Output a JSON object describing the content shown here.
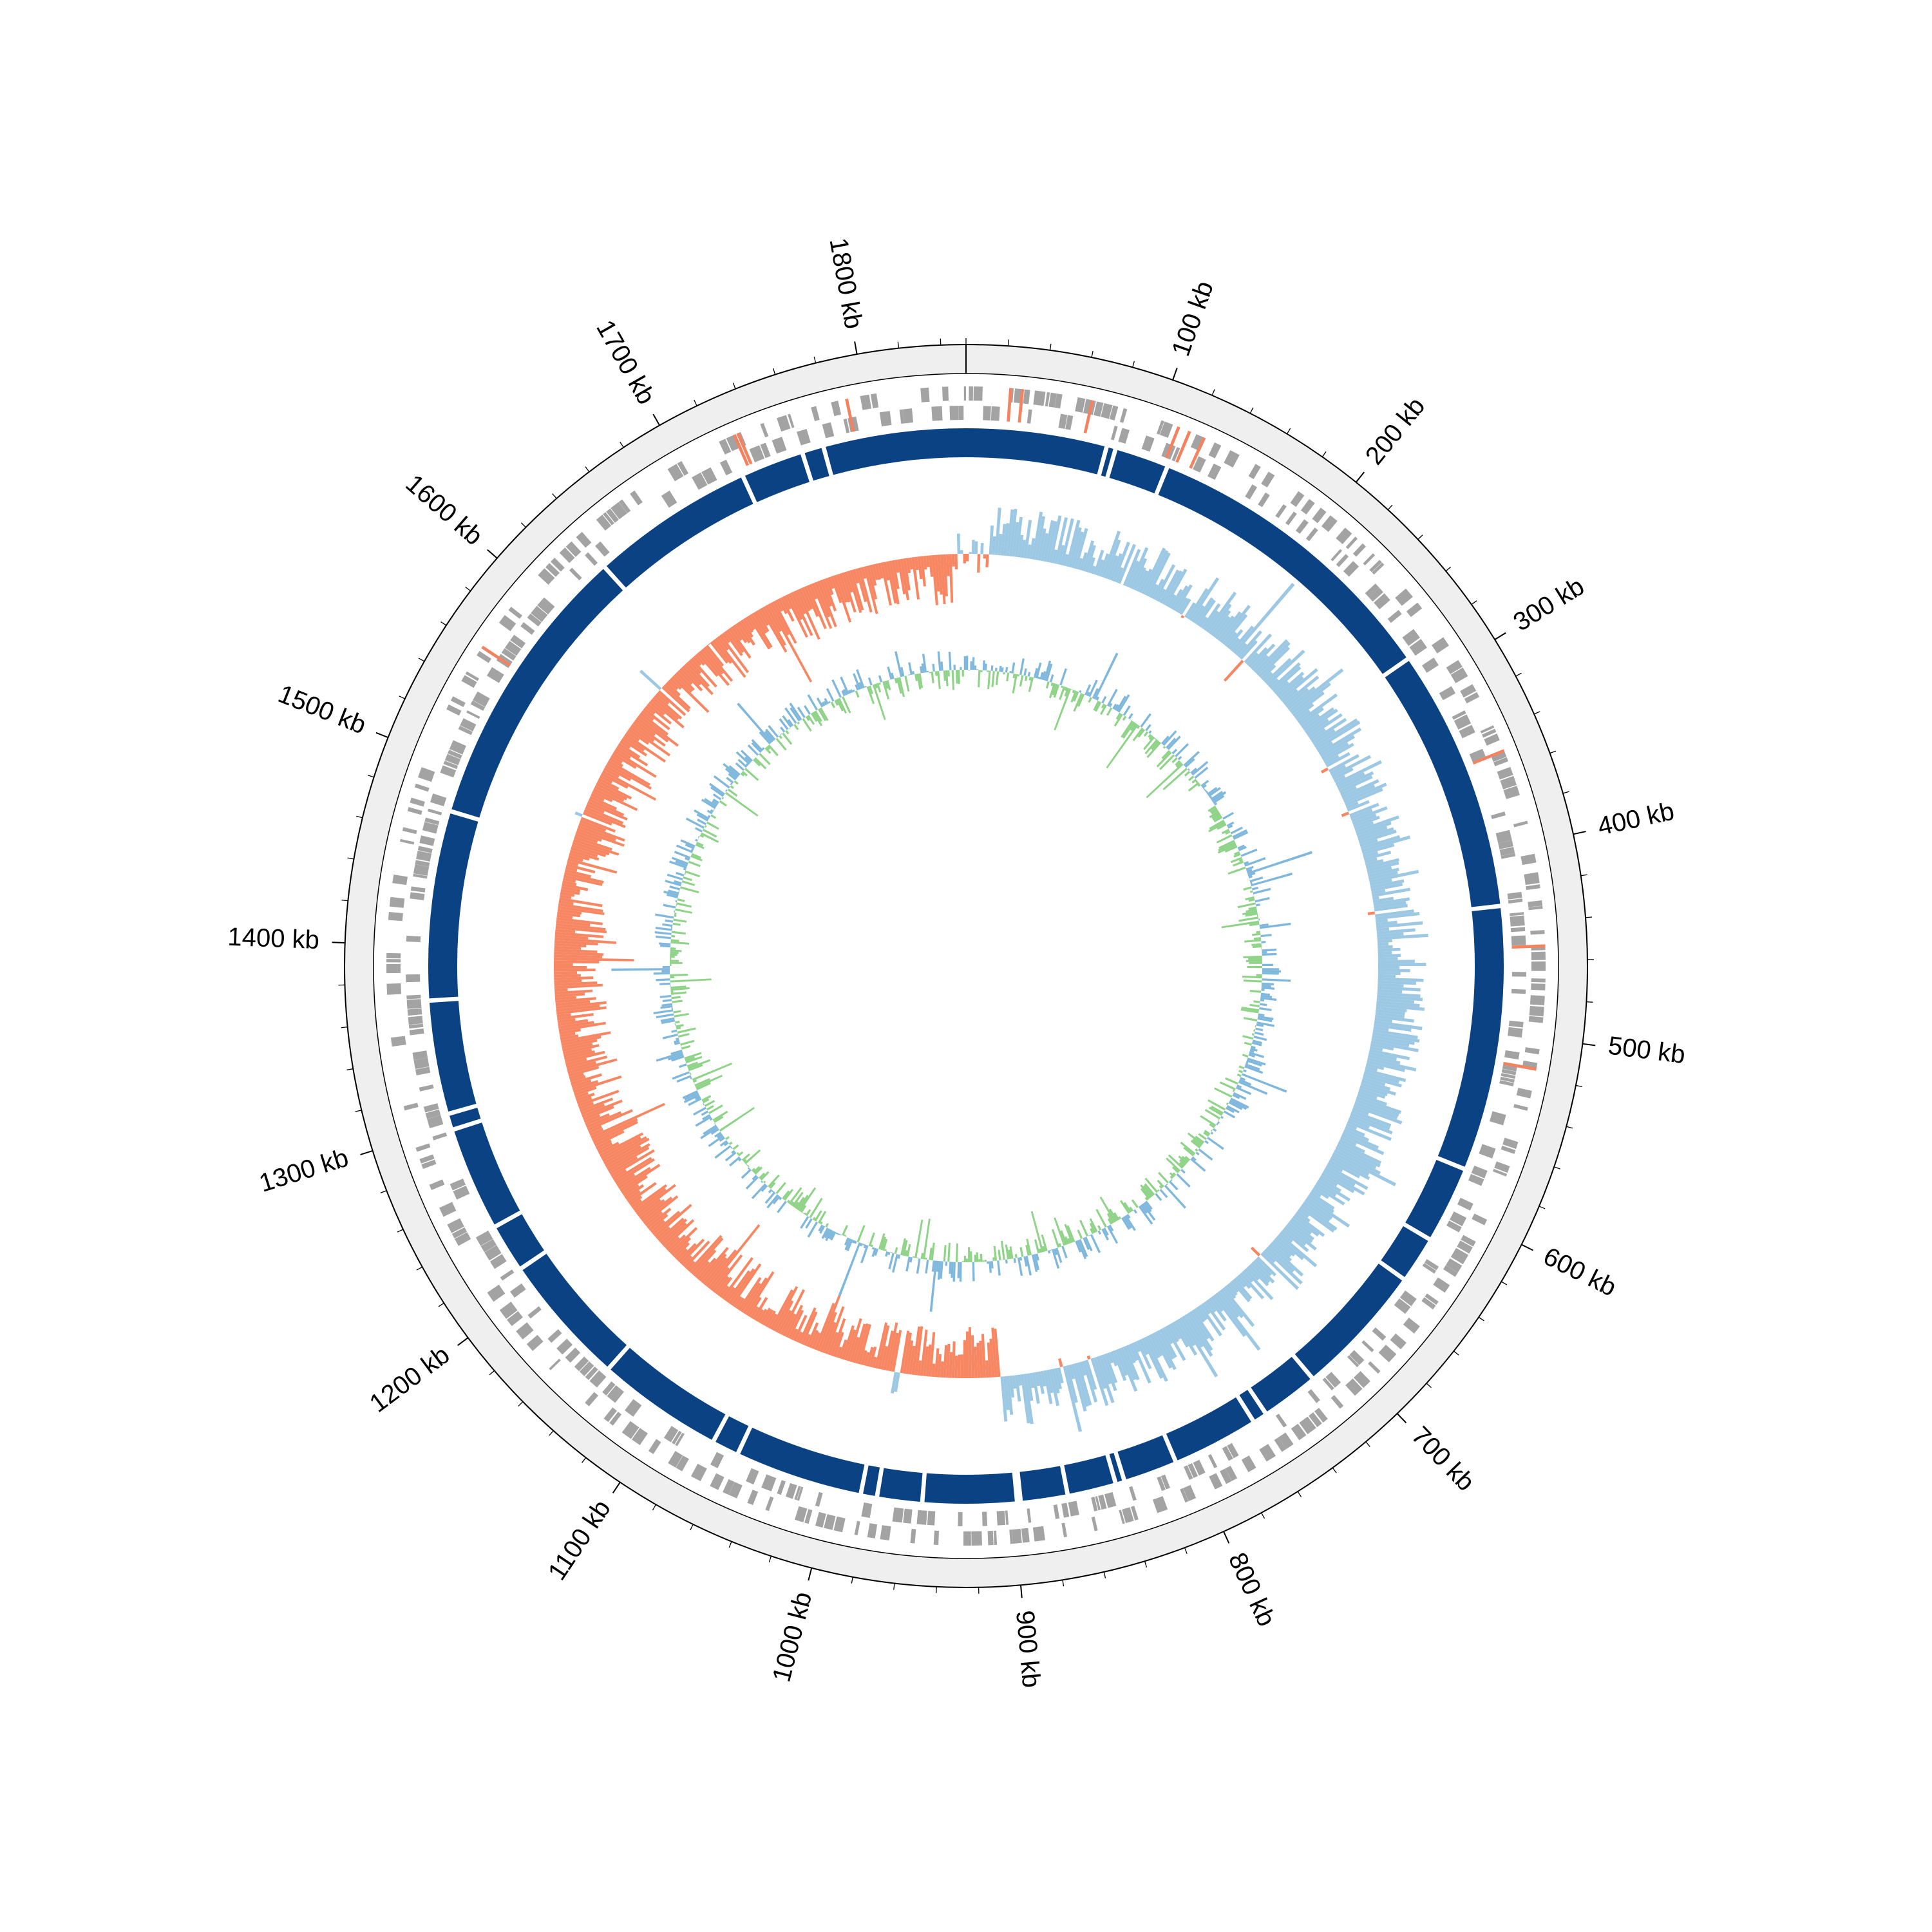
{
  "genome": {
    "length_kb": 1852,
    "unit": "kb",
    "tick_labels": [
      "100 kb",
      "200 kb",
      "300 kb",
      "400 kb",
      "500 kb",
      "600 kb",
      "700 kb",
      "800 kb",
      "900 kb",
      "1000 kb",
      "1100 kb",
      "1200 kb",
      "1300 kb",
      "1400 kb",
      "1500 kb",
      "1600 kb",
      "1700 kb",
      "1800 kb"
    ],
    "tick_positions_kb": [
      100,
      200,
      300,
      400,
      500,
      600,
      700,
      800,
      900,
      1000,
      1100,
      1200,
      1300,
      1400,
      1500,
      1600,
      1700,
      1800
    ]
  },
  "colors": {
    "outer_band": "#efefef",
    "genes": "#a3a3a3",
    "rna_genes": "#f4825f",
    "contig_blocks": "#0b4283",
    "gc_skew_positive": "#9cc8e3",
    "gc_skew_negative": "#f78763",
    "gc_content_above": "#7fb8dc",
    "gc_content_below": "#8ed387"
  },
  "tracks": {
    "contig_gaps_kb": [
      78,
      83,
      113,
      284,
      430,
      577,
      620,
      646,
      720,
      752,
      760,
      808,
      838,
      843,
      870,
      896,
      898,
      950,
      975,
      984,
      1055,
      1070,
      1140,
      1213,
      1240,
      1298,
      1307,
      1370,
      1475,
      1635,
      1726,
      1761,
      1773
    ],
    "rna_positions_kb": [
      22,
      28,
      64,
      110,
      116,
      124,
      350,
      452,
      515,
      1560,
      1730,
      1732,
      1790
    ]
  }
}
